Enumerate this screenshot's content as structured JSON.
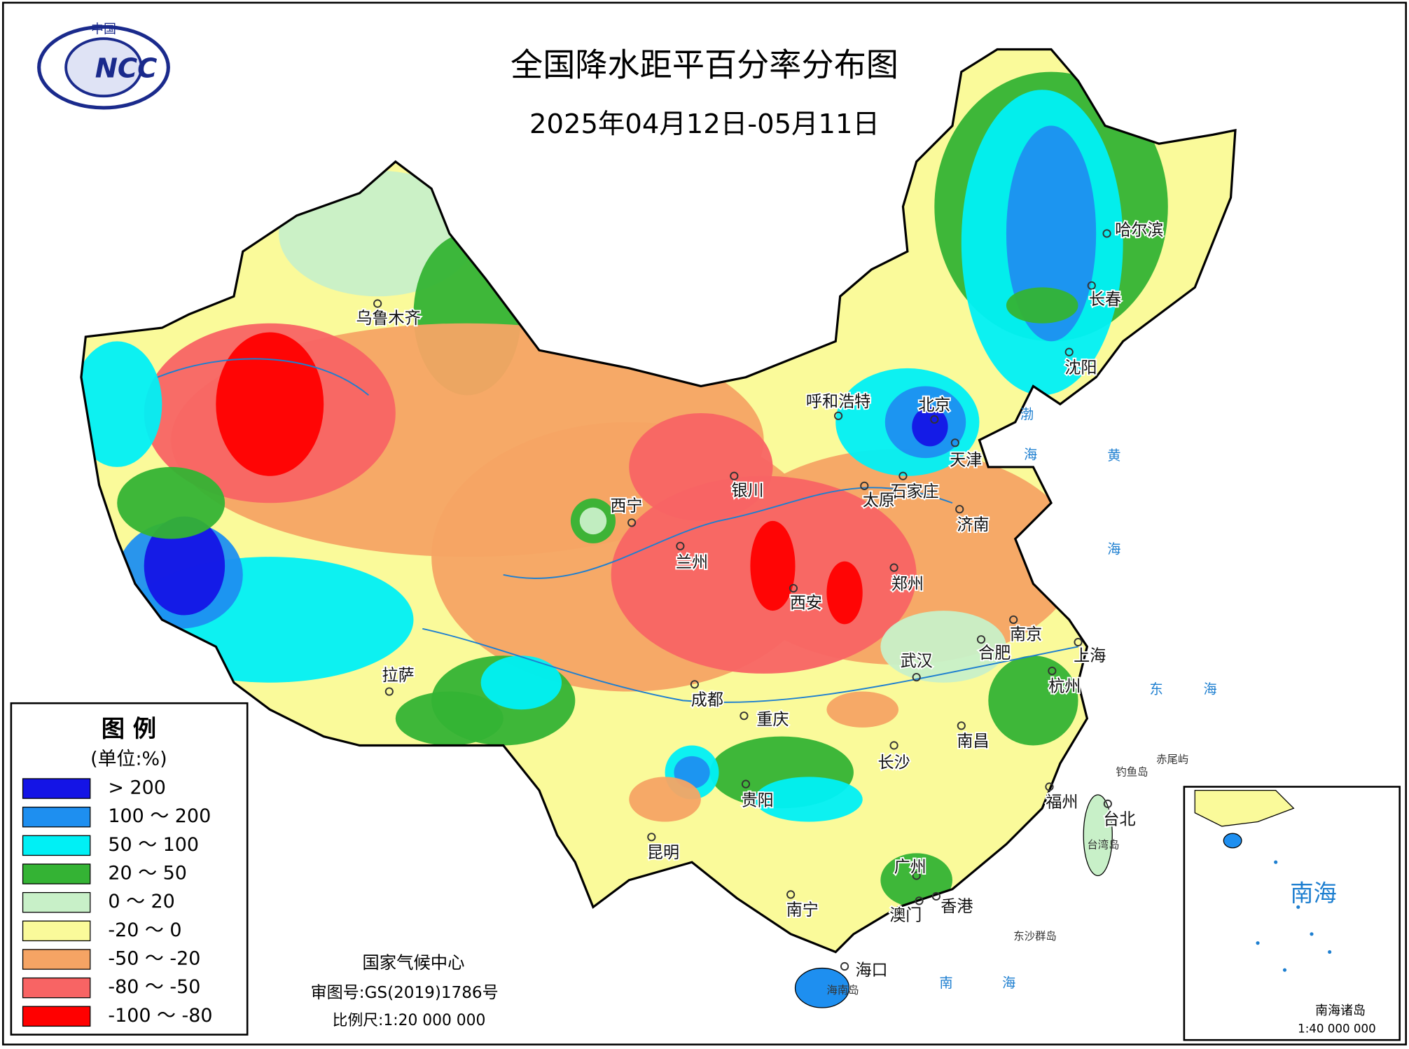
{
  "logo": {
    "top": "中国",
    "mark": "NCC"
  },
  "header": {
    "title": "全国降水距平百分率分布图",
    "date": "2025年04月12日-05月11日"
  },
  "legend": {
    "title": "图 例",
    "unit": "(单位:%)",
    "items": [
      {
        "label": "> 200",
        "color": "#1414e6"
      },
      {
        "label": "100 ～ 200",
        "color": "#1e8ff0"
      },
      {
        "label": "50 ～ 100",
        "color": "#00f0f5"
      },
      {
        "label": "20 ～ 50",
        "color": "#34b334"
      },
      {
        "label": "0 ～ 20",
        "color": "#c8f0c8"
      },
      {
        "label": "-20 ～ 0",
        "color": "#fafa9a"
      },
      {
        "label": "-50 ～ -20",
        "color": "#f5a464"
      },
      {
        "label": "-80 ～ -50",
        "color": "#f86464"
      },
      {
        "label": "-100 ～ -80",
        "color": "#ff0000"
      }
    ]
  },
  "cities": [
    {
      "name": "乌鲁木齐"
    },
    {
      "name": "呼和浩特"
    },
    {
      "name": "北京"
    },
    {
      "name": "天津"
    },
    {
      "name": "石家庄"
    },
    {
      "name": "太原"
    },
    {
      "name": "济南"
    },
    {
      "name": "银川"
    },
    {
      "name": "西宁"
    },
    {
      "name": "兰州"
    },
    {
      "name": "西安"
    },
    {
      "name": "郑州"
    },
    {
      "name": "南京"
    },
    {
      "name": "合肥"
    },
    {
      "name": "上海"
    },
    {
      "name": "武汉"
    },
    {
      "name": "杭州"
    },
    {
      "name": "成都"
    },
    {
      "name": "重庆"
    },
    {
      "name": "南昌"
    },
    {
      "name": "长沙"
    },
    {
      "name": "拉萨"
    },
    {
      "name": "贵阳"
    },
    {
      "name": "福州"
    },
    {
      "name": "台北"
    },
    {
      "name": "昆明"
    },
    {
      "name": "广州"
    },
    {
      "name": "香港"
    },
    {
      "name": "澳门"
    },
    {
      "name": "南宁"
    },
    {
      "name": "海口"
    },
    {
      "name": "哈尔滨"
    },
    {
      "name": "长春"
    },
    {
      "name": "沈阳"
    }
  ],
  "seas": [
    "渤",
    "海",
    "黄",
    "海",
    "东",
    "海",
    "南",
    "海"
  ],
  "islands": [
    "钓鱼岛",
    "赤尾屿",
    "台湾岛",
    "海南岛",
    "东沙群岛"
  ],
  "footer": {
    "org": "国家气候中心",
    "approval": "审图号:GS(2019)1786号",
    "scale": "比例尺:1:20 000 000"
  },
  "inset": {
    "sea": "南海",
    "title": "南海诸岛",
    "scale": "1:40 000 000"
  }
}
